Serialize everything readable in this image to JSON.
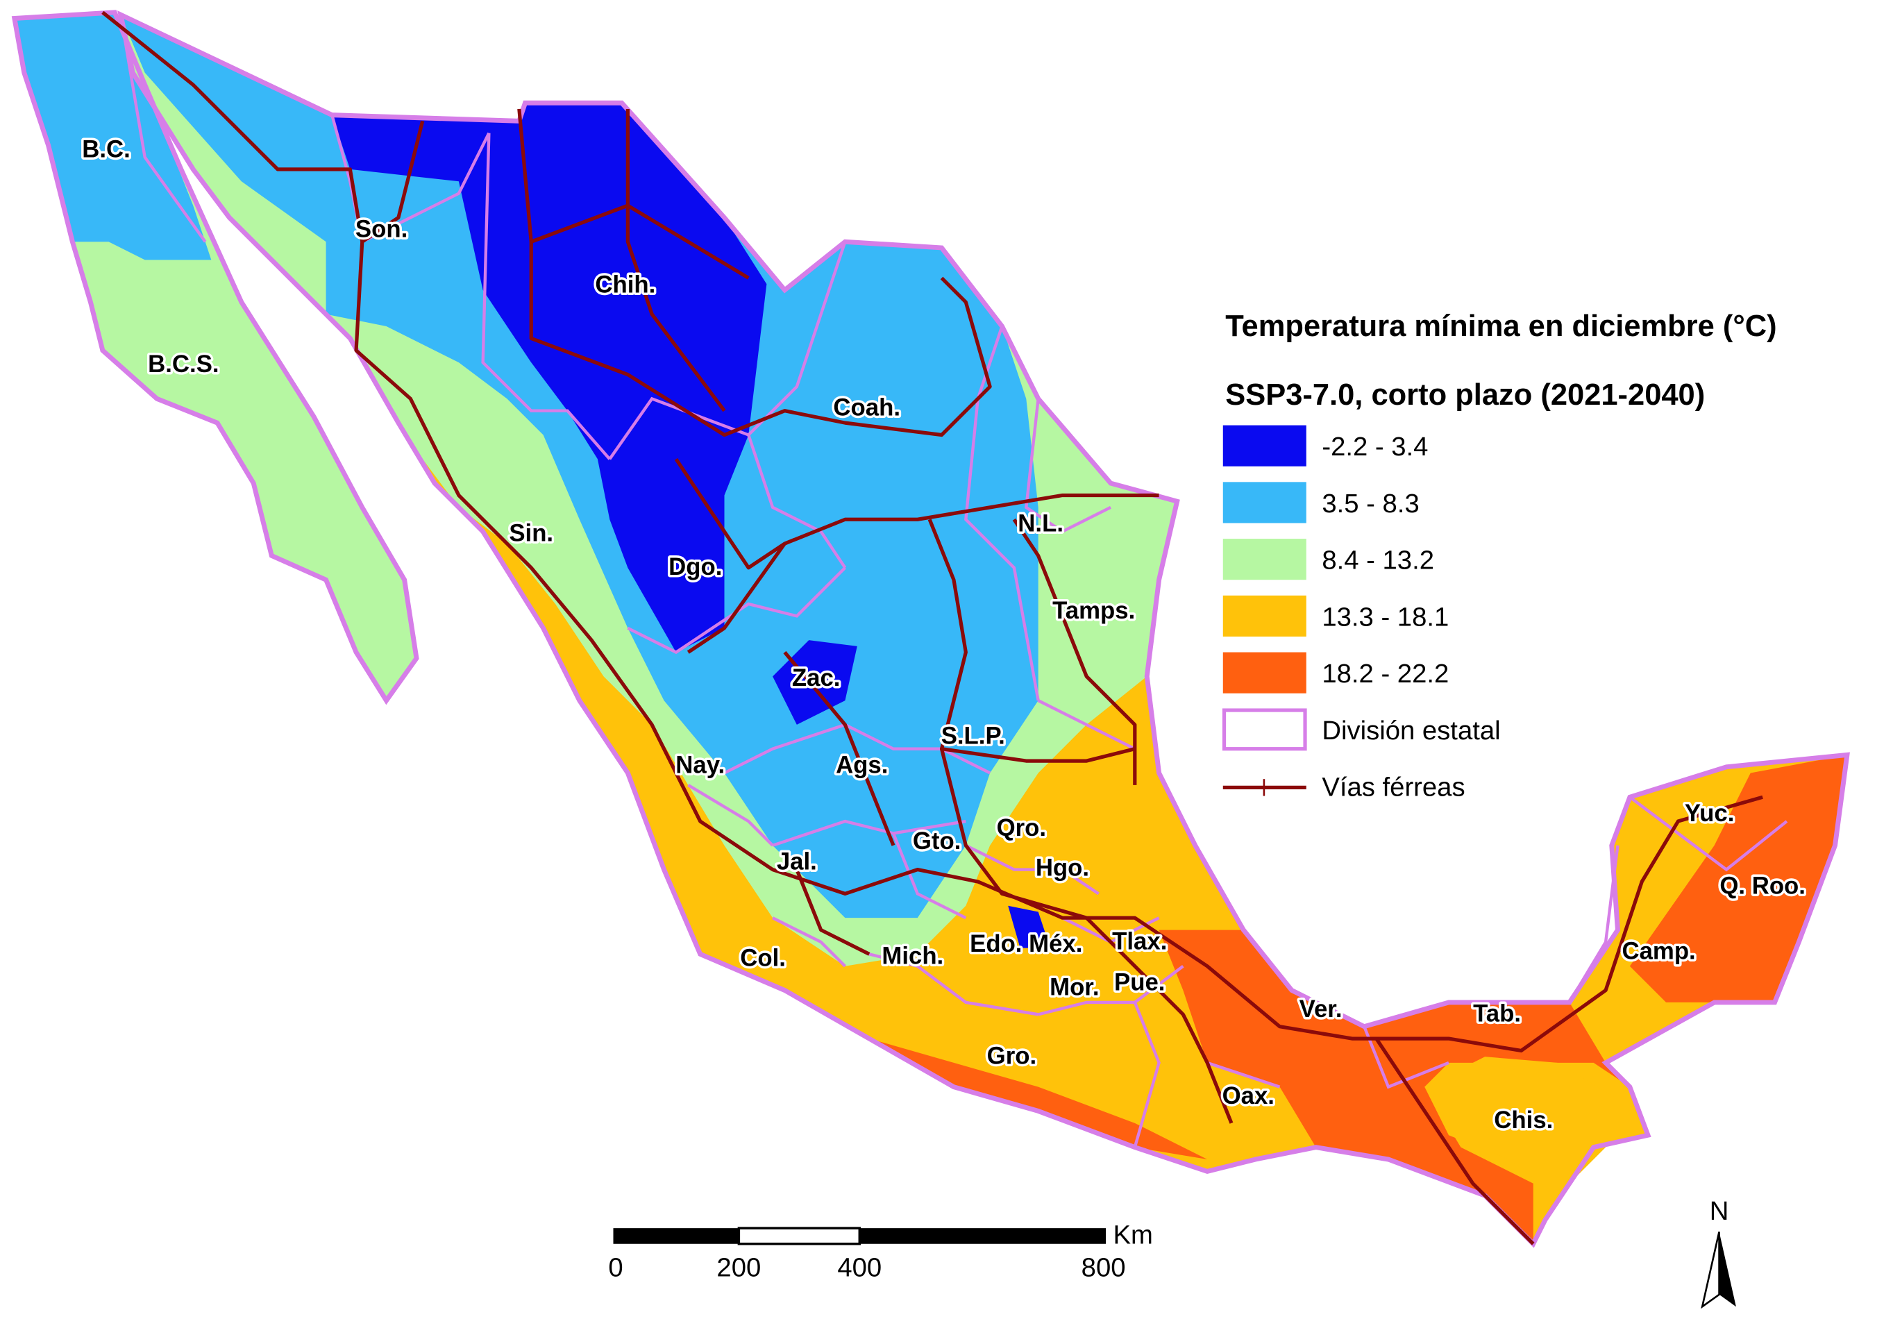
{
  "legend": {
    "title": "Temperatura mínima en diciembre (°C)",
    "subtitle": "SSP3-7.0, corto plazo (2021-2040)",
    "items": [
      {
        "label": "-2.2 - 3.4",
        "color": "#0a0af0"
      },
      {
        "label": "3.5 - 8.3",
        "color": "#38b8f8"
      },
      {
        "label": "8.4 - 13.2",
        "color": "#b6f7a2"
      },
      {
        "label": "13.3 - 18.1",
        "color": "#ffc20a"
      },
      {
        "label": "18.2 - 22.2",
        "color": "#ff6010"
      }
    ],
    "boundary": "División estatal",
    "railways": "Vías férreas"
  },
  "states": [
    "B.C.",
    "Son.",
    "Chih.",
    "B.C.S.",
    "Coah.",
    "N.L.",
    "Sin.",
    "Dgo.",
    "Tamps.",
    "Zac.",
    "S.L.P.",
    "Nay.",
    "Ags.",
    "Qro.",
    "Gto.",
    "Yuc.",
    "Jal.",
    "Hgo.",
    "Q. Roo.",
    "Edo. Méx.",
    "Tlax.",
    "Camp.",
    "Col.",
    "Mich.",
    "Mor.",
    "Pue.",
    "Ver.",
    "Tab.",
    "Gro.",
    "Oax.",
    "Chis."
  ],
  "scale_bar": {
    "labels": [
      "0",
      "200",
      "400",
      "800"
    ],
    "unit": "Km"
  },
  "north": "N"
}
